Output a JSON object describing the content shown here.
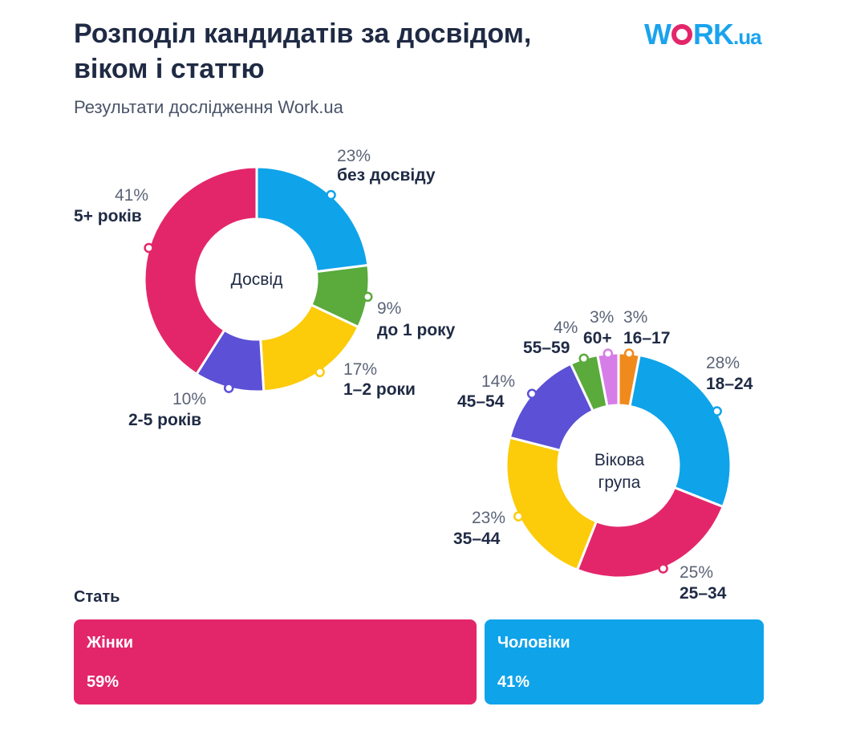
{
  "header": {
    "title_line1": "Розподіл кандидатів за досвідом,",
    "title_line2": "віком і статтю",
    "subtitle": "Результати дослідження Work.ua",
    "logo_left": "W",
    "logo_right": "RK",
    "logo_suffix": ".ua"
  },
  "chart_data": [
    {
      "type": "pie",
      "center_label": "Досвід",
      "slices": [
        {
          "label": "без досвіду",
          "value": 23,
          "pct_text": "23%",
          "color": "#0fa3ea"
        },
        {
          "label": "до 1 року",
          "value": 9,
          "pct_text": "9%",
          "color": "#5aaa3c"
        },
        {
          "label": "1–2 роки",
          "value": 17,
          "pct_text": "17%",
          "color": "#fccb0a"
        },
        {
          "label": "2-5 років",
          "value": 10,
          "pct_text": "10%",
          "color": "#5b50d6"
        },
        {
          "label": "5+ років",
          "value": 41,
          "pct_text": "41%",
          "color": "#e3266a"
        }
      ]
    },
    {
      "type": "pie",
      "center_label_line1": "Вікова",
      "center_label_line2": "група",
      "slices": [
        {
          "label": "16–17",
          "value": 3,
          "pct_text": "3%",
          "color": "#f08a1c"
        },
        {
          "label": "18–24",
          "value": 28,
          "pct_text": "28%",
          "color": "#0fa3ea"
        },
        {
          "label": "25–34",
          "value": 25,
          "pct_text": "25%",
          "color": "#e3266a"
        },
        {
          "label": "35–44",
          "value": 23,
          "pct_text": "23%",
          "color": "#fccb0a"
        },
        {
          "label": "45–54",
          "value": 14,
          "pct_text": "14%",
          "color": "#5b50d6"
        },
        {
          "label": "55–59",
          "value": 4,
          "pct_text": "4%",
          "color": "#5aaa3c"
        },
        {
          "label": "60+",
          "value": 3,
          "pct_text": "3%",
          "color": "#d77de8"
        }
      ]
    },
    {
      "type": "bar",
      "title": "Стать",
      "categories": [
        "Жінки",
        "Чоловіки"
      ],
      "values": [
        59,
        41
      ],
      "value_text": [
        "59%",
        "41%"
      ],
      "colors": [
        "#e3266a",
        "#0fa3ea"
      ]
    }
  ]
}
